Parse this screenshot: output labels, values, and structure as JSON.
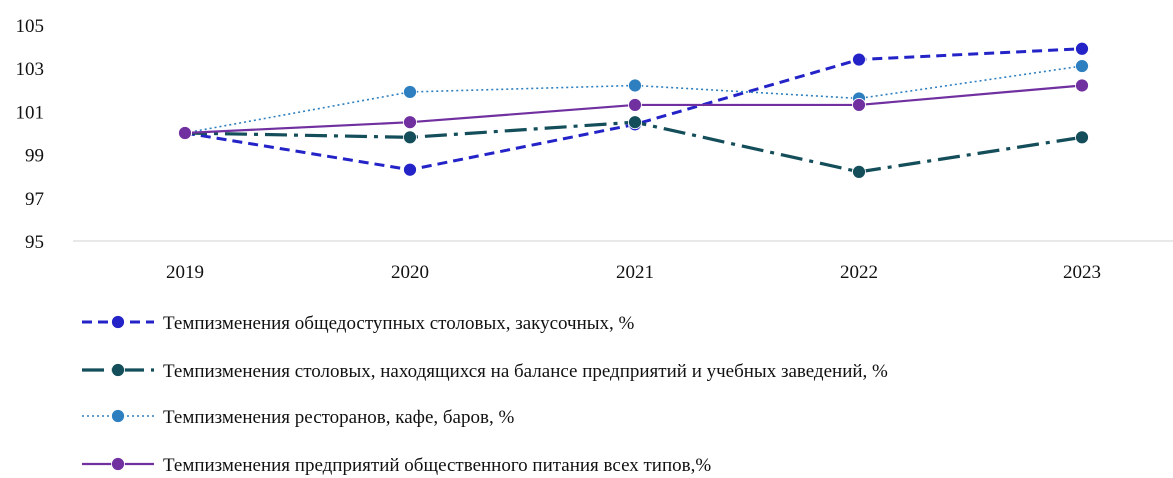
{
  "chart_data": {
    "type": "line",
    "categories": [
      "2019",
      "2020",
      "2021",
      "2022",
      "2023"
    ],
    "ylim": [
      95,
      105
    ],
    "yticks": [
      "95",
      "97",
      "99",
      "101",
      "103",
      "105"
    ],
    "grid": false,
    "legend_placement": "bottom",
    "series": [
      {
        "name": "Темпизменения общедоступных столовых, закусочных, %",
        "values": [
          100,
          98.3,
          100.4,
          103.4,
          103.9
        ],
        "color": "#2323c8",
        "style": "dashed"
      },
      {
        "name": "Темпизменения столовых, находящихся на балансе предприятий и учебных заведений, %",
        "values": [
          100,
          99.8,
          100.5,
          98.2,
          99.8
        ],
        "color": "#134e5a",
        "style": "dash-dot"
      },
      {
        "name": "Темпизменения ресторанов, кафе, баров, %",
        "values": [
          100,
          101.9,
          102.2,
          101.6,
          103.1
        ],
        "color": "#2e7fc0",
        "style": "dotted"
      },
      {
        "name": "Темпизменения предприятий общественного питания всех типов,%",
        "values": [
          100,
          100.5,
          101.3,
          101.3,
          102.2
        ],
        "color": "#7030a0",
        "style": "solid"
      }
    ]
  }
}
